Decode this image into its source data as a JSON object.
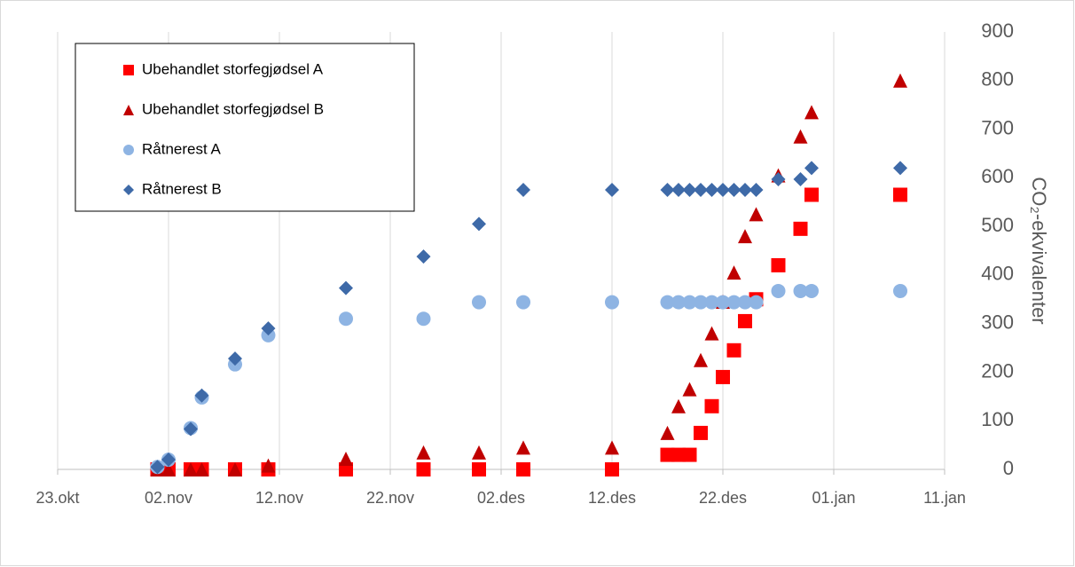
{
  "chart_data": {
    "type": "scatter",
    "y_label": "CO₂-ekvivalenter",
    "x": [
      9,
      10,
      12,
      13,
      16,
      19,
      26,
      33,
      38,
      42,
      50,
      55,
      56,
      57,
      58,
      59,
      60,
      61,
      62,
      63,
      65,
      67,
      68,
      76
    ],
    "series": [
      {
        "name": "Ubehandlet storfegjødsel A",
        "color": "#ff0000",
        "marker": "square",
        "values": [
          0,
          0,
          0,
          0,
          0,
          0,
          0,
          0,
          0,
          0,
          0,
          30,
          30,
          30,
          75,
          130,
          190,
          245,
          305,
          350,
          420,
          495,
          565,
          565
        ]
      },
      {
        "name": "Ubehandlet storfegjødsel B",
        "color": "#c00000",
        "marker": "triangle",
        "values": [
          0,
          0,
          0,
          0,
          0,
          8,
          22,
          35,
          35,
          45,
          45,
          75,
          130,
          165,
          225,
          280,
          345,
          405,
          480,
          525,
          605,
          685,
          735,
          800
        ]
      },
      {
        "name": "Råtnerest A",
        "color": "#8eb4e3",
        "marker": "circle",
        "values": [
          5,
          20,
          85,
          148,
          216,
          276,
          310,
          310,
          344,
          344,
          344,
          344,
          344,
          344,
          344,
          344,
          344,
          344,
          344,
          344,
          367,
          367,
          367,
          367
        ]
      },
      {
        "name": "Råtnerest B",
        "color": "#3e6aa8",
        "marker": "diamond",
        "values": [
          5,
          20,
          83,
          152,
          228,
          290,
          373,
          438,
          505,
          575,
          575,
          575,
          575,
          575,
          575,
          575,
          575,
          575,
          575,
          575,
          597,
          597,
          620,
          620
        ]
      }
    ],
    "xlim": [
      0,
      80
    ],
    "xticks": [
      {
        "value": 0,
        "label": "23.okt"
      },
      {
        "value": 10,
        "label": "02.nov"
      },
      {
        "value": 20,
        "label": "12.nov"
      },
      {
        "value": 30,
        "label": "22.nov"
      },
      {
        "value": 40,
        "label": "02.des"
      },
      {
        "value": 50,
        "label": "12.des"
      },
      {
        "value": 60,
        "label": "22.des"
      },
      {
        "value": 70,
        "label": "01.jan"
      },
      {
        "value": 80,
        "label": "11.jan"
      }
    ],
    "ylim": [
      0,
      900
    ],
    "yticks": [
      0,
      100,
      200,
      300,
      400,
      500,
      600,
      700,
      800,
      900
    ],
    "grid": "x",
    "y_axis_side": "right",
    "legend": "top-left"
  }
}
